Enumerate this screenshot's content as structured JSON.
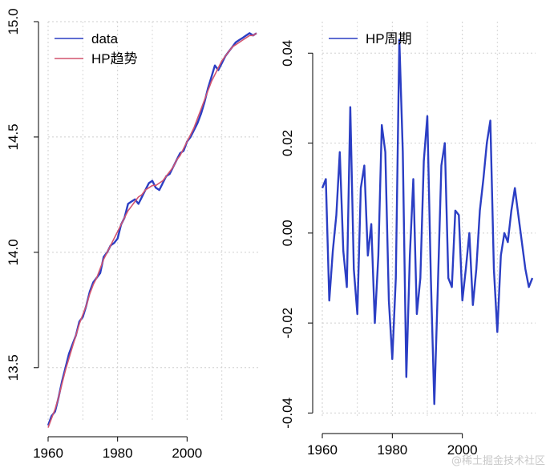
{
  "chart_data": [
    {
      "type": "line",
      "title": "",
      "xlabel": "",
      "ylabel": "",
      "xlim": [
        1960,
        2020
      ],
      "ylim": [
        13.27,
        15.0
      ],
      "grid": true,
      "legend_position": "top-left",
      "x_ticks": [
        "1960",
        "1980",
        "2000"
      ],
      "y_ticks": [
        "13.5",
        "14.0",
        "14.5",
        "15.0"
      ],
      "series": [
        {
          "name": "data",
          "color": "#2b3ec4",
          "x": [
            1960,
            1961,
            1962,
            1963,
            1964,
            1965,
            1966,
            1967,
            1968,
            1969,
            1970,
            1971,
            1972,
            1973,
            1974,
            1975,
            1976,
            1977,
            1978,
            1979,
            1980,
            1981,
            1982,
            1983,
            1984,
            1985,
            1986,
            1987,
            1988,
            1989,
            1990,
            1991,
            1992,
            1993,
            1994,
            1995,
            1996,
            1997,
            1998,
            1999,
            2000,
            2001,
            2002,
            2003,
            2004,
            2005,
            2006,
            2007,
            2008,
            2009,
            2010,
            2011,
            2012,
            2013,
            2014,
            2015,
            2016,
            2017,
            2018,
            2019,
            2020
          ],
          "values": [
            13.25,
            13.29,
            13.31,
            13.37,
            13.44,
            13.5,
            13.56,
            13.6,
            13.64,
            13.7,
            13.72,
            13.77,
            13.83,
            13.87,
            13.89,
            13.91,
            13.98,
            14.0,
            14.03,
            14.04,
            14.06,
            14.12,
            14.15,
            14.21,
            14.22,
            14.23,
            14.21,
            14.24,
            14.27,
            14.3,
            14.31,
            14.28,
            14.27,
            14.3,
            14.33,
            14.34,
            14.37,
            14.4,
            14.43,
            14.44,
            14.48,
            14.5,
            14.53,
            14.56,
            14.6,
            14.65,
            14.71,
            14.76,
            14.81,
            14.79,
            14.82,
            14.85,
            14.87,
            14.89,
            14.91,
            14.92,
            14.93,
            14.94,
            14.95,
            14.94,
            14.95
          ]
        },
        {
          "name": "HP趋势",
          "color": "#d2546f",
          "x": [
            1960,
            1961,
            1962,
            1963,
            1964,
            1965,
            1966,
            1967,
            1968,
            1969,
            1970,
            1971,
            1972,
            1973,
            1974,
            1975,
            1976,
            1977,
            1978,
            1979,
            1980,
            1981,
            1982,
            1983,
            1984,
            1985,
            1986,
            1987,
            1988,
            1989,
            1990,
            1991,
            1992,
            1993,
            1994,
            1995,
            1996,
            1997,
            1998,
            1999,
            2000,
            2001,
            2002,
            2003,
            2004,
            2005,
            2006,
            2007,
            2008,
            2009,
            2010,
            2011,
            2012,
            2013,
            2014,
            2015,
            2016,
            2017,
            2018,
            2019,
            2020
          ],
          "values": [
            13.24,
            13.28,
            13.32,
            13.37,
            13.43,
            13.49,
            13.54,
            13.59,
            13.64,
            13.69,
            13.73,
            13.77,
            13.82,
            13.86,
            13.89,
            13.93,
            13.97,
            14.0,
            14.03,
            14.06,
            14.09,
            14.12,
            14.15,
            14.18,
            14.2,
            14.22,
            14.24,
            14.25,
            14.27,
            14.28,
            14.29,
            14.29,
            14.3,
            14.31,
            14.33,
            14.35,
            14.37,
            14.4,
            14.42,
            14.45,
            14.48,
            14.51,
            14.54,
            14.58,
            14.62,
            14.66,
            14.7,
            14.74,
            14.77,
            14.8,
            14.83,
            14.85,
            14.87,
            14.89,
            14.9,
            14.91,
            14.92,
            14.93,
            14.94,
            14.94,
            14.95
          ]
        }
      ]
    },
    {
      "type": "line",
      "title": "",
      "xlabel": "",
      "ylabel": "",
      "xlim": [
        1960,
        2020
      ],
      "ylim": [
        -0.041,
        0.047
      ],
      "grid": true,
      "legend_position": "top-left",
      "x_ticks": [
        "1960",
        "1980",
        "2000"
      ],
      "y_ticks": [
        "-0.04",
        "-0.02",
        "0.00",
        "0.02",
        "0.04"
      ],
      "series": [
        {
          "name": "HP周期",
          "color": "#2b3ec4",
          "x": [
            1960,
            1961,
            1962,
            1963,
            1964,
            1965,
            1966,
            1967,
            1968,
            1969,
            1970,
            1971,
            1972,
            1973,
            1974,
            1975,
            1976,
            1977,
            1978,
            1979,
            1980,
            1981,
            1982,
            1983,
            1984,
            1985,
            1986,
            1987,
            1988,
            1989,
            1990,
            1991,
            1992,
            1993,
            1994,
            1995,
            1996,
            1997,
            1998,
            1999,
            2000,
            2001,
            2002,
            2003,
            2004,
            2005,
            2006,
            2007,
            2008,
            2009,
            2010,
            2011,
            2012,
            2013,
            2014,
            2015,
            2016,
            2017,
            2018,
            2019,
            2020
          ],
          "values": [
            0.01,
            0.012,
            -0.015,
            -0.004,
            0.004,
            0.018,
            -0.004,
            -0.012,
            0.028,
            -0.008,
            -0.018,
            0.01,
            0.015,
            -0.005,
            0.002,
            -0.02,
            -0.005,
            0.024,
            0.018,
            -0.015,
            -0.028,
            -0.01,
            0.043,
            0.018,
            -0.032,
            -0.005,
            0.012,
            -0.018,
            -0.01,
            0.016,
            0.026,
            -0.01,
            -0.038,
            -0.012,
            0.015,
            0.02,
            -0.01,
            -0.012,
            0.005,
            0.004,
            -0.015,
            -0.008,
            0.0,
            -0.016,
            -0.008,
            0.005,
            0.012,
            0.02,
            0.025,
            -0.008,
            -0.022,
            -0.005,
            0.0,
            -0.002,
            0.005,
            0.01,
            0.004,
            -0.002,
            -0.008,
            -0.012,
            -0.01
          ]
        }
      ]
    }
  ],
  "watermark": "@稀土掘金技术社区"
}
